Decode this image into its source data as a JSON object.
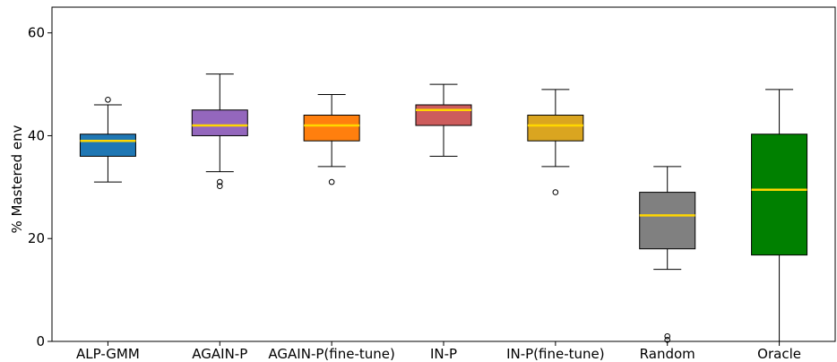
{
  "chart_data": {
    "type": "box",
    "title": "",
    "xlabel": "",
    "ylabel": "% Mastered env",
    "ylim": [
      0,
      65
    ],
    "yticks": [
      0,
      20,
      40,
      60
    ],
    "grid": false,
    "median_color": "#ffd700",
    "categories": [
      "ALP-GMM",
      "AGAIN-P",
      "AGAIN-P(fine-tune)",
      "IN-P",
      "IN-P(fine-tune)",
      "Random",
      "Oracle"
    ],
    "boxes": [
      {
        "label": "ALP-GMM",
        "color": "#1f77b4",
        "whisker_low": 31,
        "q1": 36,
        "median": 39,
        "q3": 40.3,
        "whisker_high": 46,
        "outliers": [
          47
        ]
      },
      {
        "label": "AGAIN-P",
        "color": "#9467bd",
        "whisker_low": 33,
        "q1": 40,
        "median": 42,
        "q3": 45,
        "whisker_high": 52,
        "outliers": [
          31,
          30.2
        ]
      },
      {
        "label": "AGAIN-P(fine-tune)",
        "color": "#ff7f0e",
        "whisker_low": 34,
        "q1": 39,
        "median": 42,
        "q3": 44,
        "whisker_high": 48,
        "outliers": [
          31
        ]
      },
      {
        "label": "IN-P",
        "color": "#cd5c5c",
        "whisker_low": 36,
        "q1": 42,
        "median": 45,
        "q3": 46,
        "whisker_high": 50,
        "outliers": []
      },
      {
        "label": "IN-P(fine-tune)",
        "color": "#daa520",
        "whisker_low": 34,
        "q1": 39,
        "median": 42,
        "q3": 44,
        "whisker_high": 49,
        "outliers": [
          29
        ]
      },
      {
        "label": "Random",
        "color": "#808080",
        "whisker_low": 14,
        "q1": 18,
        "median": 24.5,
        "q3": 29,
        "whisker_high": 34,
        "outliers": [
          1,
          0.3
        ]
      },
      {
        "label": "Oracle",
        "color": "#008000",
        "whisker_low": 0,
        "q1": 16.8,
        "median": 29.5,
        "q3": 40.3,
        "whisker_high": 49,
        "outliers": []
      }
    ]
  }
}
